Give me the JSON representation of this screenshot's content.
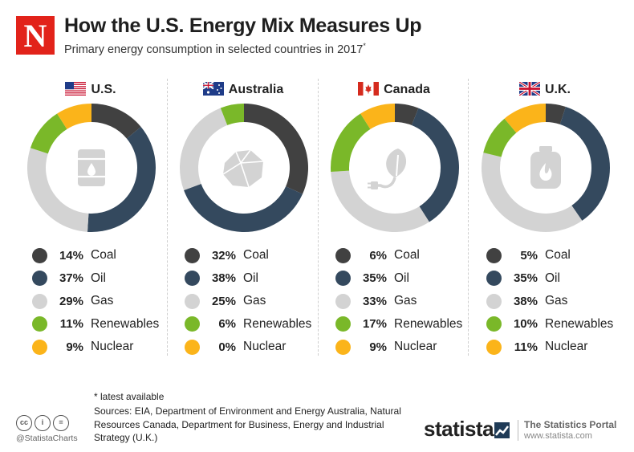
{
  "header": {
    "logo_letter": "N",
    "title": "How the U.S. Energy Mix Measures Up",
    "subtitle": "Primary energy consumption in selected countries in 2017",
    "subtitle_mark": "*"
  },
  "colors": {
    "Coal": "#414141",
    "Oil": "#34495e",
    "Gas": "#d3d3d3",
    "Renewables": "#7ab829",
    "Nuclear": "#fbb41a"
  },
  "chart_data": [
    {
      "type": "pie",
      "title": "U.S.",
      "icon": "oil-barrel-icon",
      "categories": [
        "Coal",
        "Oil",
        "Gas",
        "Renewables",
        "Nuclear"
      ],
      "values": [
        14,
        37,
        29,
        11,
        9
      ],
      "labels": [
        "14%",
        "37%",
        "29%",
        "11%",
        "9%"
      ]
    },
    {
      "type": "pie",
      "title": "Australia",
      "icon": "coal-lump-icon",
      "categories": [
        "Coal",
        "Oil",
        "Gas",
        "Renewables",
        "Nuclear"
      ],
      "values": [
        32,
        38,
        25,
        6,
        0
      ],
      "labels": [
        "32%",
        "38%",
        "25%",
        "6%",
        "0%"
      ]
    },
    {
      "type": "pie",
      "title": "Canada",
      "icon": "leaf-plug-icon",
      "categories": [
        "Coal",
        "Oil",
        "Gas",
        "Renewables",
        "Nuclear"
      ],
      "values": [
        6,
        35,
        33,
        17,
        9
      ],
      "labels": [
        "6%",
        "35%",
        "33%",
        "17%",
        "9%"
      ]
    },
    {
      "type": "pie",
      "title": "U.K.",
      "icon": "gas-canister-icon",
      "categories": [
        "Coal",
        "Oil",
        "Gas",
        "Renewables",
        "Nuclear"
      ],
      "values": [
        5,
        35,
        38,
        10,
        11
      ],
      "labels": [
        "5%",
        "35%",
        "38%",
        "10%",
        "11%"
      ]
    }
  ],
  "footer": {
    "note": "* latest available",
    "sources": "Sources: EIA, Department of Environment and Energy Australia, Natural Resources Canada, Department for Business, Energy and Industrial Strategy (U.K.)",
    "cc_labels": [
      "cc",
      "i",
      "="
    ],
    "handle": "@StatistaCharts",
    "brand": "statista",
    "portal": "The Statistics Portal",
    "url": "www.statista.com"
  }
}
